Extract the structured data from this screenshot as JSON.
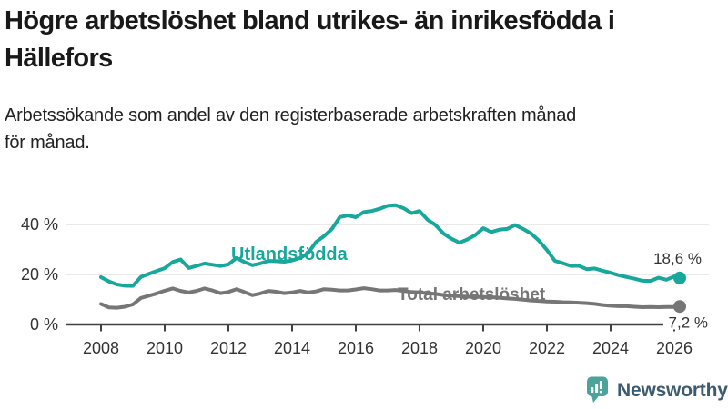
{
  "header": {
    "title": "Högre arbetslöshet bland utrikes- än inrikesfödda i Hällefors",
    "title_line1": "Högre arbetslöshet bland utrikes- än inrikesfödda i",
    "title_line2": "Hällefors",
    "subtitle": "Arbetssökande som andel av den registerbaserade arbetskraften månad för månad.",
    "subtitle_line1": "Arbetssökande som andel av den registerbaserade arbetskraften månad",
    "subtitle_line2": "för månad."
  },
  "footer": {
    "brand": "Newsworthy",
    "brand_text_color": "#3d5b70",
    "icon": "newsworthy-chart-bubble-icon",
    "icon_color": "#4ba399"
  },
  "chart_data": {
    "type": "line",
    "title": "Högre arbetslöshet bland utrikes- än inrikesfödda i Hällefors",
    "subtitle": "Arbetssökande som andel av den registerbaserade arbetskraften månad för månad.",
    "unit": "%",
    "grid": "horizontal",
    "colors": {
      "axis": "#404040",
      "gridline": "#dcdcdc",
      "tick_label": "#333333",
      "value_label": "#333333"
    },
    "x_axis": {
      "ticks": [
        2008,
        2010,
        2012,
        2014,
        2016,
        2018,
        2020,
        2022,
        2024,
        2026
      ],
      "tick_labels": [
        "2008",
        "2010",
        "2012",
        "2014",
        "2016",
        "2018",
        "2020",
        "2022",
        "2024",
        "2026"
      ]
    },
    "y_axis": {
      "ticks": [
        0,
        20,
        40
      ],
      "tick_labels": [
        "0 %",
        "20 %",
        "40 %"
      ],
      "range": [
        0,
        50
      ]
    },
    "x": [
      2008,
      2008.25,
      2008.5,
      2008.75,
      2009,
      2009.25,
      2009.5,
      2009.75,
      2010,
      2010.25,
      2010.5,
      2010.75,
      2011,
      2011.25,
      2011.5,
      2011.75,
      2012,
      2012.25,
      2012.5,
      2012.75,
      2013,
      2013.25,
      2013.5,
      2013.75,
      2014,
      2014.25,
      2014.5,
      2014.75,
      2015,
      2015.25,
      2015.5,
      2015.75,
      2016,
      2016.25,
      2016.5,
      2016.75,
      2017,
      2017.25,
      2017.5,
      2017.75,
      2018,
      2018.25,
      2018.5,
      2018.75,
      2019,
      2019.25,
      2019.5,
      2019.75,
      2020,
      2020.25,
      2020.5,
      2020.75,
      2021,
      2021.25,
      2021.5,
      2021.75,
      2022,
      2022.25,
      2022.5,
      2022.75,
      2023,
      2023.25,
      2023.5,
      2023.75,
      2024,
      2024.25,
      2024.5,
      2024.75,
      2025,
      2025.25,
      2025.5,
      2025.75,
      2026,
      2026.17
    ],
    "series": [
      {
        "name": "Utlandsfödda",
        "color": "#17a79b",
        "end_label": "18,6 %",
        "last_value": 18.6,
        "values": [
          18.9,
          17.2,
          16.0,
          15.5,
          15.4,
          19.0,
          20.2,
          21.4,
          22.5,
          25.0,
          26.0,
          22.6,
          23.4,
          24.4,
          23.9,
          23.4,
          24.0,
          26.6,
          25.0,
          23.7,
          24.4,
          25.4,
          25.3,
          25.1,
          25.6,
          26.6,
          28.5,
          33.0,
          35.3,
          38.2,
          43.0,
          43.6,
          42.9,
          45.0,
          45.4,
          46.3,
          47.5,
          47.7,
          46.5,
          44.5,
          45.4,
          41.9,
          39.8,
          36.4,
          34.3,
          32.7,
          34.0,
          35.8,
          38.5,
          37.0,
          37.9,
          38.2,
          39.8,
          38.2,
          36.4,
          33.5,
          29.8,
          25.4,
          24.5,
          23.4,
          23.5,
          22.1,
          22.4,
          21.5,
          20.7,
          19.7,
          19.0,
          18.3,
          17.5,
          17.4,
          18.7,
          17.9,
          19.2,
          18.6
        ]
      },
      {
        "name": "Total arbetslöshet",
        "color": "#767676",
        "end_label": "7,2 %",
        "last_value": 7.2,
        "values": [
          8.2,
          6.8,
          6.7,
          7.1,
          8.0,
          10.6,
          11.5,
          12.4,
          13.5,
          14.4,
          13.4,
          12.8,
          13.4,
          14.4,
          13.6,
          12.5,
          13.0,
          14.1,
          13.0,
          11.7,
          12.4,
          13.4,
          13.1,
          12.5,
          12.8,
          13.4,
          12.8,
          13.2,
          14.1,
          13.9,
          13.6,
          13.6,
          14.0,
          14.5,
          14.1,
          13.6,
          13.6,
          13.8,
          13.4,
          13.0,
          12.8,
          12.5,
          12.2,
          11.8,
          11.5,
          11.3,
          11.1,
          11.0,
          11.0,
          10.9,
          10.7,
          10.4,
          10.2,
          9.9,
          9.6,
          9.4,
          9.2,
          9.1,
          8.9,
          8.8,
          8.7,
          8.5,
          8.2,
          7.8,
          7.5,
          7.3,
          7.3,
          7.1,
          6.9,
          7.0,
          6.9,
          7.0,
          7.0,
          7.2
        ]
      }
    ]
  }
}
